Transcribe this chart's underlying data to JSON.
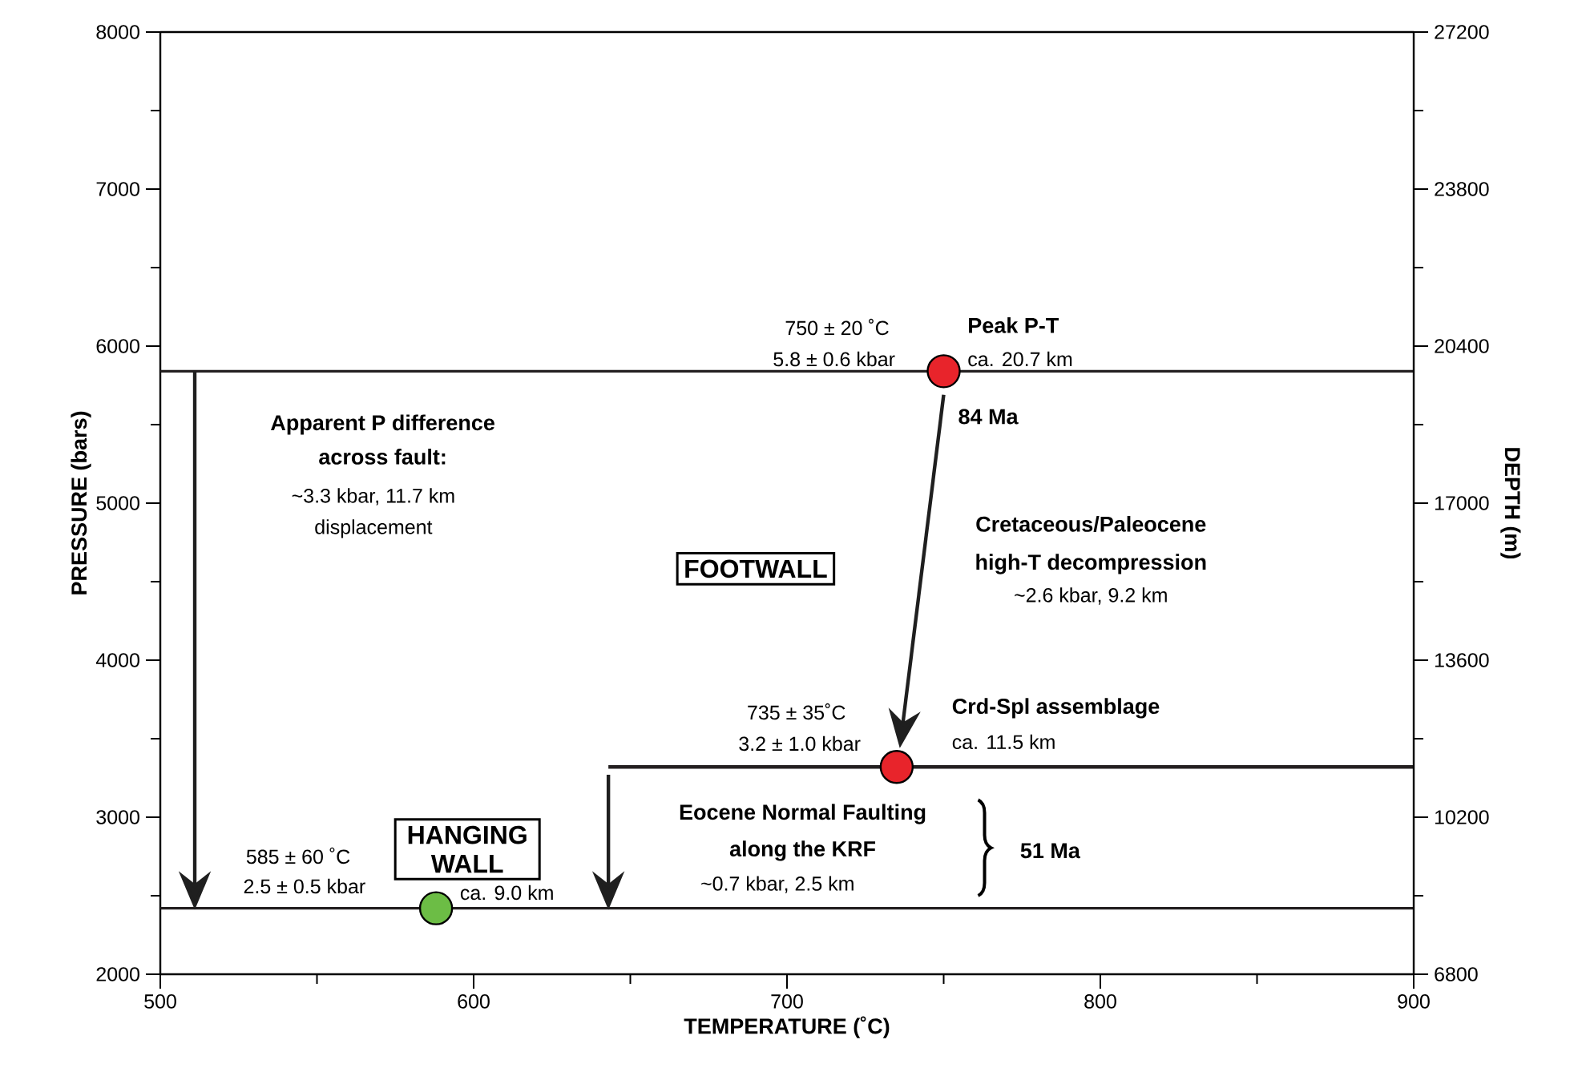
{
  "chart_data": {
    "type": "scatter",
    "xlabel": "TEMPERATURE (˚C)",
    "ylabel": "PRESSURE (bars)",
    "y2label": "DEPTH (m)",
    "xlim": [
      500,
      900
    ],
    "ylim": [
      2000,
      8000
    ],
    "y2lim": [
      6800,
      27200
    ],
    "xticks": [
      500,
      {
        "value": 550,
        "label": null
      },
      600,
      {
        "value": 650,
        "label": null
      },
      700,
      {
        "value": 750,
        "label": null
      },
      800,
      {
        "value": 850,
        "label": null
      },
      900
    ],
    "yticks": [
      2000,
      {
        "value": 2500,
        "label": null
      },
      3000,
      {
        "value": 3500,
        "label": null
      },
      4000,
      {
        "value": 4500,
        "label": null
      },
      5000,
      {
        "value": 5500,
        "label": null
      },
      6000,
      {
        "value": 6500,
        "label": null
      },
      7000,
      {
        "value": 7500,
        "label": null
      },
      8000
    ],
    "y2ticks": [
      6800,
      {
        "value": 8500,
        "label": null
      },
      10200,
      {
        "value": 11900,
        "label": null
      },
      13600,
      {
        "value": 15300,
        "label": null
      },
      17000,
      {
        "value": 18700,
        "label": null
      },
      20400,
      {
        "value": 22100,
        "label": null
      },
      23800,
      {
        "value": 25500,
        "label": null
      },
      27200
    ],
    "series": [
      {
        "type": "line",
        "x": [
          643,
          900
        ],
        "values": [
          3320,
          3320
        ],
        "color": "#231f20"
      },
      {
        "type": "scatter",
        "x": [
          750,
          735,
          588
        ],
        "values": [
          5840,
          3320,
          2420
        ],
        "colors": [
          "#e8242b",
          "#e8242b",
          "#6cbd45"
        ],
        "marker": "circle"
      }
    ],
    "ref_lines": [
      {
        "axis": "y",
        "value": 5840,
        "color": "#231f20"
      },
      {
        "axis": "y",
        "value": 2420,
        "color": "#231f20"
      }
    ],
    "annotations": [
      "750 ± 20 ˚C",
      "5.8 ± 0.6 kbar",
      "**Peak P-T**",
      "ca. 20.7 km",
      "**84 Ma**",
      "**Cretaceous/Paleocene**",
      "**high-T decompression**",
      "~2.6 kbar, 9.2 km",
      "**FOOTWALL**",
      "735 ± 35˚C",
      "3.2 ± 1.0 kbar",
      "**Crd-Spl assemblage**",
      "ca. 11.5 km",
      "**Apparent P difference**",
      "**across fault:**",
      "~3.3 kbar, 11.7 km",
      "displacement",
      "**HANGING WALL**",
      "585 ± 60 ˚C",
      "2.5 ± 0.5 kbar",
      "ca. 9.0 km",
      "**Eocene Normal Faulting**",
      "**along the KRF**",
      "~0.7 kbar, 2.5 km",
      "**51 Ma**"
    ]
  }
}
